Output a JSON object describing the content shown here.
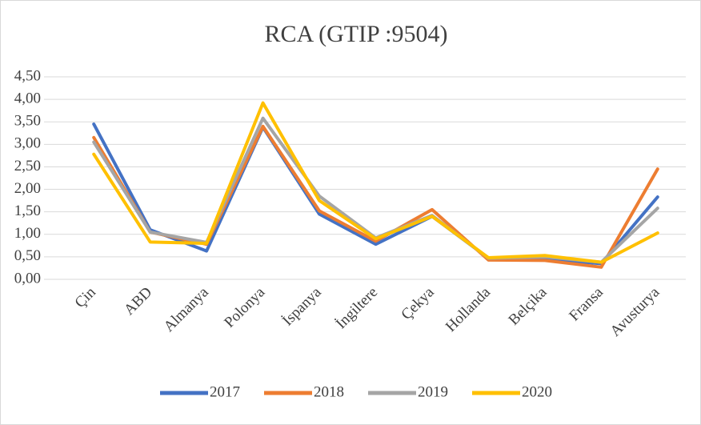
{
  "chart_data": {
    "type": "line",
    "title": "RCA (GTIP :9504)",
    "categories": [
      "Çin",
      "ABD",
      "Almanya",
      "Polonya",
      "İspanya",
      "İngiltere",
      "Çekya",
      "Hollanda",
      "Belçika",
      "Fransa",
      "Avusturya"
    ],
    "series": [
      {
        "name": "2017",
        "color": "#4472c4",
        "values": [
          3.45,
          1.1,
          0.63,
          3.38,
          1.45,
          0.78,
          1.4,
          0.47,
          0.45,
          0.35,
          1.83
        ]
      },
      {
        "name": "2018",
        "color": "#ed7d31",
        "values": [
          3.15,
          1.05,
          0.78,
          3.4,
          1.52,
          0.85,
          1.55,
          0.43,
          0.42,
          0.27,
          2.45
        ]
      },
      {
        "name": "2019",
        "color": "#a5a5a5",
        "values": [
          3.05,
          1.05,
          0.82,
          3.58,
          1.85,
          0.92,
          1.42,
          0.47,
          0.5,
          0.38,
          1.58
        ]
      },
      {
        "name": "2020",
        "color": "#ffc000",
        "values": [
          2.78,
          0.83,
          0.8,
          3.92,
          1.75,
          0.9,
          1.4,
          0.48,
          0.53,
          0.38,
          1.03
        ]
      }
    ],
    "ylim": [
      0,
      4.5
    ],
    "yticks": [
      {
        "value": 0,
        "label": "0,00"
      },
      {
        "value": 0.5,
        "label": "0,50"
      },
      {
        "value": 1,
        "label": "1,00"
      },
      {
        "value": 1.5,
        "label": "1,50"
      },
      {
        "value": 2,
        "label": "2,00"
      },
      {
        "value": 2.5,
        "label": "2,50"
      },
      {
        "value": 3,
        "label": "3,00"
      },
      {
        "value": 3.5,
        "label": "3,50"
      },
      {
        "value": 4,
        "label": "4,00"
      },
      {
        "value": 4.5,
        "label": "4,50"
      }
    ],
    "grid": true,
    "legend": "bottom"
  }
}
